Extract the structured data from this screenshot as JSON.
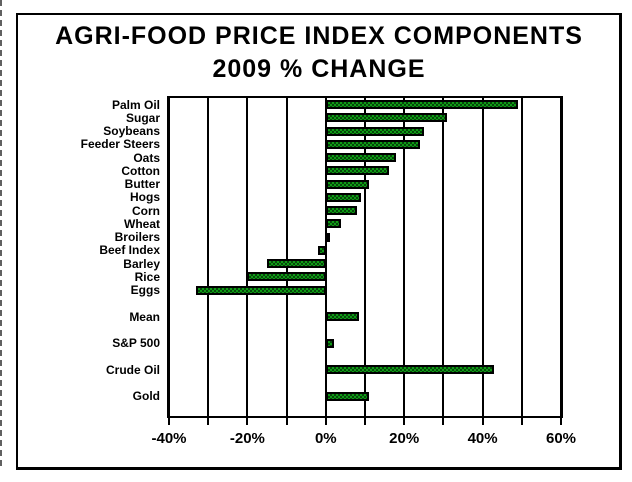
{
  "chart_data": {
    "type": "bar",
    "orientation": "horizontal",
    "title": "AGRI-FOOD PRICE INDEX COMPONENTS",
    "subtitle": "2009 % CHANGE",
    "categories": [
      "Palm Oil",
      "Sugar",
      "Soybeans",
      "Feeder Steers",
      "Oats",
      "Cotton",
      "Butter",
      "Hogs",
      "Corn",
      "Wheat",
      "Broilers",
      "Beef Index",
      "Barley",
      "Rice",
      "Eggs",
      "Mean",
      "S&P 500",
      "Crude Oil",
      "Gold"
    ],
    "values": [
      49,
      31,
      25,
      24,
      18,
      16,
      11,
      9,
      8,
      4,
      1,
      -2,
      -15,
      -20,
      -33,
      8.5,
      2,
      43,
      11
    ],
    "xlim": [
      -40,
      60
    ],
    "grid_step": 10,
    "grid": true,
    "x_ticks": [
      -40,
      -20,
      0,
      20,
      40,
      60
    ],
    "x_tick_labels": [
      "-40%",
      "-20%",
      "0%",
      "20%",
      "40%",
      "60%"
    ],
    "bar_color": "#0f9a15",
    "bar_pattern_color": "#05470a",
    "bar_border_color": "#000000",
    "layout": {
      "slots": [
        0,
        1,
        2,
        3,
        4,
        5,
        6,
        7,
        8,
        9,
        10,
        11,
        12,
        13,
        14,
        16,
        18,
        20,
        22
      ],
      "slot_count": 24,
      "legend": "none",
      "gridlines": "vertical-every-10pct"
    }
  }
}
